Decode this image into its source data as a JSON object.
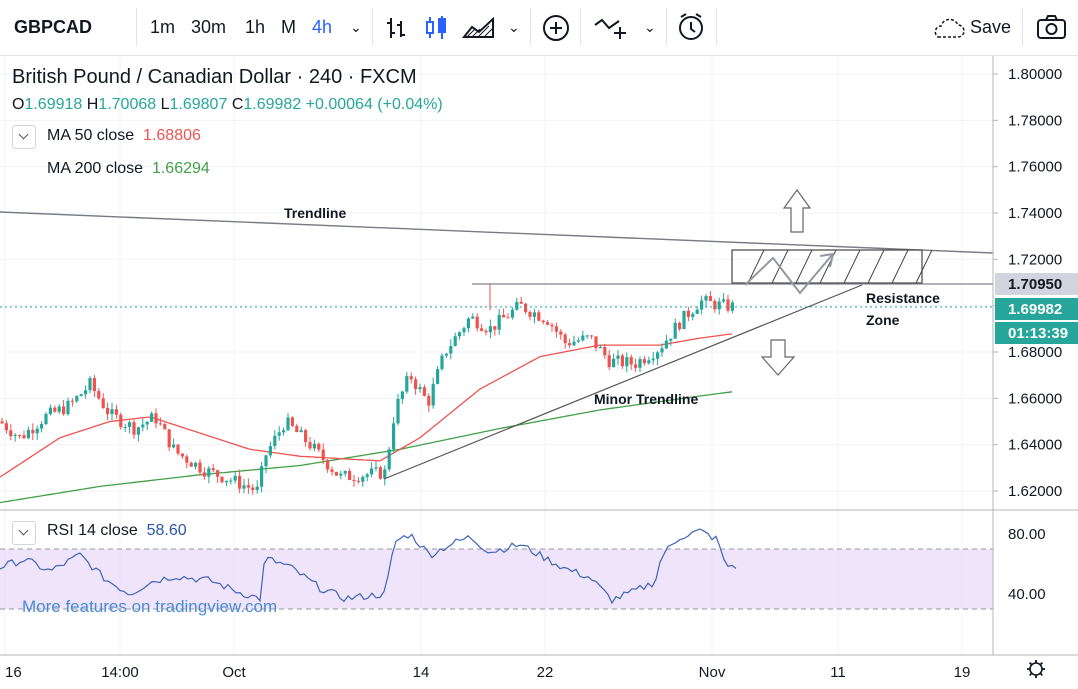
{
  "toolbar": {
    "symbol": "GBPCAD",
    "intervals": [
      "1m",
      "30m",
      "1h",
      "M",
      "4h"
    ],
    "active_interval": "4h",
    "save_label": "Save"
  },
  "legend": {
    "title": "British Pound / Canadian Dollar · 240 · FXCM",
    "ohlc": {
      "o_label": "O",
      "o": "1.69918",
      "h_label": "H",
      "h": "1.70068",
      "l_label": "L",
      "l": "1.69807",
      "c_label": "C",
      "c": "1.69982",
      "change": "+0.00064 (+0.04%)"
    },
    "ma50": {
      "name": "MA  50 close",
      "value": "1.68806",
      "color": "#ef5350"
    },
    "ma200": {
      "name": "MA  200 close",
      "value": "1.66294",
      "color": "#43a047"
    }
  },
  "rsi_legend": {
    "name": "RSI  14 close",
    "value": "58.60"
  },
  "watermark": "More features on tradingview.com",
  "price_tags": {
    "level": "1.70950",
    "last": "1.69982",
    "countdown": "01:13:39"
  },
  "annotations": {
    "trendline": "Trendline",
    "resistance_1": "Resistance",
    "resistance_2": "Zone",
    "minor_trendline": "Minor Trendline"
  },
  "colors": {
    "up": "#26a69a",
    "down": "#ef5350",
    "ma50": "#ef5350",
    "ma200": "#43a047",
    "rsi": "#3f63b5",
    "rsi_band": "#e8d8f8"
  },
  "chart_data": {
    "type": "candlestick",
    "y_axis": {
      "ticks": [
        "1.80000",
        "1.78000",
        "1.76000",
        "1.74000",
        "1.72000",
        "1.70000",
        "1.68000",
        "1.66000",
        "1.64000",
        "1.62000"
      ],
      "ylim": [
        1.6125,
        1.8075
      ]
    },
    "x_axis": {
      "ticks": [
        "16",
        "14:00",
        "Oct",
        "14",
        "22",
        "Nov",
        "11",
        "19"
      ]
    },
    "price_anchors": [
      [
        0,
        1.65
      ],
      [
        20,
        1.643
      ],
      [
        45,
        1.652
      ],
      [
        70,
        1.657
      ],
      [
        90,
        1.666
      ],
      [
        110,
        1.653
      ],
      [
        135,
        1.647
      ],
      [
        155,
        1.652
      ],
      [
        175,
        1.637
      ],
      [
        205,
        1.629
      ],
      [
        230,
        1.625
      ],
      [
        258,
        1.62
      ],
      [
        265,
        1.635
      ],
      [
        285,
        1.65
      ],
      [
        310,
        1.64
      ],
      [
        340,
        1.626
      ],
      [
        385,
        1.628
      ],
      [
        395,
        1.655
      ],
      [
        410,
        1.67
      ],
      [
        428,
        1.658
      ],
      [
        445,
        1.68
      ],
      [
        470,
        1.695
      ],
      [
        490,
        1.69
      ],
      [
        520,
        1.7
      ],
      [
        548,
        1.694
      ],
      [
        565,
        1.684
      ],
      [
        590,
        1.686
      ],
      [
        610,
        1.676
      ],
      [
        635,
        1.675
      ],
      [
        660,
        1.682
      ],
      [
        680,
        1.693
      ],
      [
        700,
        1.702
      ],
      [
        722,
        1.7
      ],
      [
        735,
        1.6995
      ]
    ],
    "ma50_anchors": [
      [
        0,
        1.626
      ],
      [
        60,
        1.643
      ],
      [
        110,
        1.65
      ],
      [
        150,
        1.652
      ],
      [
        200,
        1.645
      ],
      [
        250,
        1.638
      ],
      [
        300,
        1.635
      ],
      [
        380,
        1.633
      ],
      [
        420,
        1.643
      ],
      [
        480,
        1.664
      ],
      [
        540,
        1.678
      ],
      [
        600,
        1.683
      ],
      [
        660,
        1.683
      ],
      [
        700,
        1.686
      ],
      [
        735,
        1.688
      ]
    ],
    "ma200_anchors": [
      [
        0,
        1.615
      ],
      [
        100,
        1.622
      ],
      [
        200,
        1.627
      ],
      [
        300,
        1.631
      ],
      [
        400,
        1.638
      ],
      [
        500,
        1.647
      ],
      [
        600,
        1.655
      ],
      [
        700,
        1.661
      ],
      [
        735,
        1.663
      ]
    ],
    "rsi": {
      "ticks": [
        "80.00",
        "40.00"
      ],
      "overbought": 70,
      "oversold": 30,
      "last": 58.6,
      "anchors": [
        [
          0,
          58
        ],
        [
          25,
          63
        ],
        [
          50,
          55
        ],
        [
          80,
          66
        ],
        [
          105,
          50
        ],
        [
          130,
          40
        ],
        [
          150,
          48
        ],
        [
          175,
          52
        ],
        [
          210,
          49
        ],
        [
          240,
          41
        ],
        [
          260,
          37
        ],
        [
          265,
          64
        ],
        [
          290,
          58
        ],
        [
          320,
          44
        ],
        [
          345,
          37
        ],
        [
          385,
          40
        ],
        [
          395,
          75
        ],
        [
          410,
          80
        ],
        [
          430,
          66
        ],
        [
          450,
          73
        ],
        [
          470,
          78
        ],
        [
          490,
          68
        ],
        [
          520,
          73
        ],
        [
          548,
          63
        ],
        [
          565,
          57
        ],
        [
          590,
          51
        ],
        [
          612,
          36
        ],
        [
          635,
          42
        ],
        [
          655,
          48
        ],
        [
          662,
          66
        ],
        [
          680,
          78
        ],
        [
          700,
          82
        ],
        [
          718,
          76
        ],
        [
          725,
          59
        ],
        [
          737,
          58.6
        ]
      ]
    }
  }
}
